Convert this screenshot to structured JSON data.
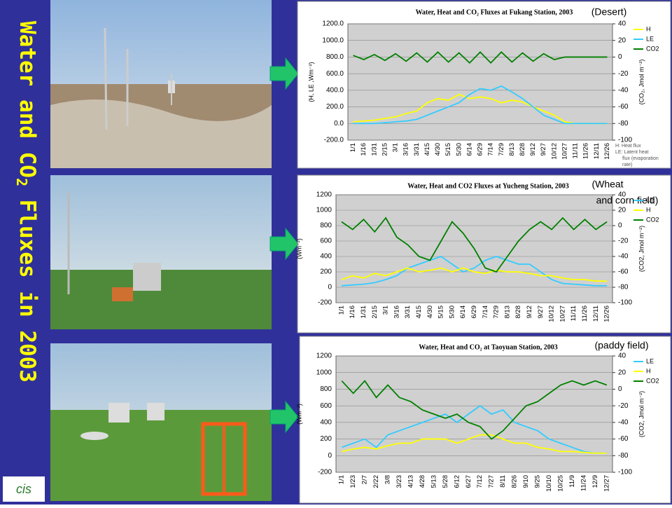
{
  "slide_title": [
    "Water and CO",
    "2",
    " Fluxes in 2003"
  ],
  "chart_data": [
    {
      "type": "line",
      "title": "Water, Heat and CO₂ Fluxes at Fukang Station, 2003",
      "annotation": [
        "(Desert)"
      ],
      "y_label": "(H, LE ,Wm⁻²)",
      "y2_label": "(CO₂, Jmol m⁻²)",
      "notes": [
        "H: Heat flux",
        "LE: Latent heat",
        "flux (evaporation",
        "rate)"
      ],
      "categories": [
        "1/1",
        "1/16",
        "1/31",
        "2/15",
        "3/1",
        "3/16",
        "3/31",
        "4/15",
        "4/30",
        "5/15",
        "5/30",
        "6/14",
        "6/29",
        "7/14",
        "7/29",
        "8/13",
        "8/28",
        "9/12",
        "9/27",
        "10/12",
        "10/27",
        "11/11",
        "11/26",
        "12/11",
        "12/26"
      ],
      "ylim": [
        -200,
        1200
      ],
      "yticks": [
        {
          "value": -200,
          "label": "-200.0"
        },
        {
          "value": 0,
          "label": "0.0"
        },
        {
          "value": 200,
          "label": "200.0"
        },
        {
          "value": 400,
          "label": "400.0"
        },
        {
          "value": 600,
          "label": "600.0"
        },
        {
          "value": 800,
          "label": "800.0"
        },
        {
          "value": 1000,
          "label": "1000.0"
        },
        {
          "value": 1200,
          "label": "1200.0"
        }
      ],
      "y2lim": [
        -100,
        40
      ],
      "y2ticks": [
        -100,
        -80,
        -60,
        -40,
        -20,
        0,
        20,
        40
      ],
      "series": [
        {
          "name": "H",
          "color": "#ffff00",
          "values": [
            20,
            30,
            40,
            60,
            80,
            120,
            150,
            250,
            300,
            280,
            350,
            300,
            320,
            300,
            250,
            280,
            260,
            200,
            150,
            100,
            20,
            0,
            0,
            0,
            0
          ]
        },
        {
          "name": "LE",
          "color": "#33ccff",
          "values": [
            0,
            0,
            0,
            10,
            20,
            30,
            50,
            100,
            150,
            200,
            250,
            350,
            420,
            400,
            450,
            380,
            300,
            200,
            100,
            50,
            0,
            0,
            0,
            0,
            0
          ]
        },
        {
          "name": "CO2",
          "color": "#008000",
          "axis": "y2",
          "values": [
            2,
            -3,
            3,
            -4,
            4,
            -5,
            5,
            -6,
            6,
            -6,
            5,
            -7,
            6,
            -7,
            6,
            -6,
            5,
            -5,
            4,
            -3,
            0,
            0,
            0,
            0,
            0
          ]
        }
      ]
    },
    {
      "type": "line",
      "title": "Water, Heat and CO2 Fluxes at Yucheng Station, 2003",
      "annotation": [
        "(Wheat",
        "and corn field)"
      ],
      "y_label": "(Wm⁻²)",
      "y2_label": "(CO2, Jmol m⁻²)",
      "categories": [
        "1/1",
        "1/16",
        "1/31",
        "2/15",
        "3/1",
        "3/16",
        "3/31",
        "4/15",
        "4/30",
        "5/15",
        "5/30",
        "6/14",
        "6/29",
        "7/14",
        "7/29",
        "8/13",
        "8/28",
        "9/12",
        "9/27",
        "10/12",
        "10/27",
        "11/11",
        "11/26",
        "12/11",
        "12/26"
      ],
      "ylim": [
        -200,
        1200
      ],
      "yticks": [
        -200,
        0,
        200,
        400,
        600,
        800,
        1000,
        1200
      ],
      "y2lim": [
        -100,
        40
      ],
      "y2ticks": [
        -100,
        -80,
        -60,
        -40,
        -20,
        0,
        20,
        40
      ],
      "series": [
        {
          "name": "LE",
          "color": "#33ccff",
          "values": [
            20,
            30,
            40,
            60,
            100,
            150,
            250,
            300,
            350,
            400,
            300,
            200,
            250,
            350,
            400,
            350,
            300,
            300,
            200,
            100,
            50,
            40,
            30,
            20,
            20
          ]
        },
        {
          "name": "H",
          "color": "#ffff00",
          "values": [
            100,
            150,
            120,
            180,
            150,
            200,
            250,
            200,
            220,
            250,
            200,
            250,
            200,
            180,
            220,
            200,
            200,
            180,
            150,
            150,
            120,
            100,
            100,
            80,
            80
          ]
        },
        {
          "name": "CO2",
          "color": "#008000",
          "axis": "y2",
          "values": [
            5,
            -5,
            8,
            -8,
            10,
            -15,
            -25,
            -40,
            -45,
            -20,
            5,
            -10,
            -30,
            -55,
            -60,
            -40,
            -20,
            -5,
            5,
            -5,
            10,
            -5,
            8,
            -5,
            5
          ]
        }
      ]
    },
    {
      "type": "line",
      "title": "Water, Heat and CO₂ at Taoyuan Station, 2003",
      "annotation": [
        "(paddy field)"
      ],
      "y_label": "(Wm⁻²)",
      "y2_label": "(CO2, Jmol m⁻²)",
      "categories": [
        "1/1",
        "1/23",
        "2/7",
        "2/22",
        "3/8",
        "3/23",
        "4/13",
        "4/28",
        "5/13",
        "5/28",
        "6/12",
        "6/27",
        "7/12",
        "7/27",
        "8/11",
        "8/26",
        "9/10",
        "9/25",
        "10/10",
        "10/25",
        "11/9",
        "11/24",
        "12/9",
        "12/27"
      ],
      "ylim": [
        -200,
        1200
      ],
      "yticks": [
        -200,
        0,
        200,
        400,
        600,
        800,
        1000,
        1200
      ],
      "y2lim": [
        -100,
        40
      ],
      "y2ticks": [
        -100,
        -80,
        -60,
        -40,
        -20,
        0,
        20,
        40
      ],
      "series": [
        {
          "name": "LE",
          "color": "#33ccff",
          "values": [
            100,
            150,
            200,
            100,
            250,
            300,
            350,
            400,
            450,
            500,
            400,
            500,
            600,
            500,
            550,
            400,
            350,
            300,
            200,
            150,
            100,
            50,
            30,
            30
          ]
        },
        {
          "name": "H",
          "color": "#ffff00",
          "values": [
            50,
            80,
            100,
            80,
            120,
            150,
            150,
            200,
            200,
            200,
            150,
            200,
            250,
            250,
            200,
            150,
            150,
            100,
            80,
            50,
            50,
            40,
            30,
            30
          ]
        },
        {
          "name": "CO2",
          "color": "#008000",
          "axis": "y2",
          "values": [
            10,
            -5,
            10,
            -10,
            5,
            -10,
            -15,
            -25,
            -30,
            -35,
            -30,
            -40,
            -45,
            -60,
            -50,
            -35,
            -20,
            -15,
            -5,
            5,
            10,
            5,
            10,
            5
          ]
        }
      ]
    }
  ]
}
